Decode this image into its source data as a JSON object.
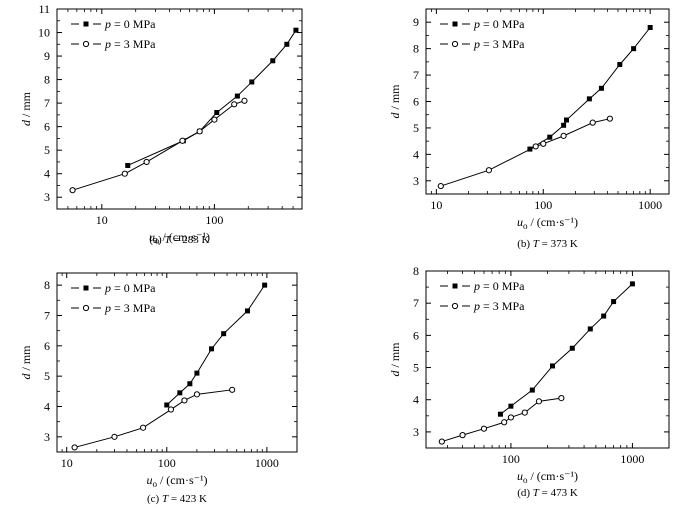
{
  "figure": {
    "legend_labels": [
      "p = 0  MPa",
      "p = 3  MPa"
    ],
    "xlabel": "u_o / (cm·s⁻¹)",
    "ylabel": "d / mm"
  },
  "chart_data": [
    {
      "type": "line",
      "caption": "(a) T = 283 K",
      "xscale": "log",
      "xlim": [
        4,
        600
      ],
      "ylim": [
        2.5,
        11
      ],
      "xticks": [
        10,
        100
      ],
      "xtick_labels": [
        "10",
        "100"
      ],
      "yticks": [
        3,
        4,
        5,
        6,
        7,
        8,
        9,
        10,
        11
      ],
      "ytick_labels": [
        "3",
        "4",
        "5",
        "6",
        "7",
        "8",
        "9",
        "10",
        "11"
      ],
      "xlabel": "u_o / (cm·s⁻¹)",
      "ylabel": "d / mm",
      "legend": "top-left",
      "series": [
        {
          "name": "p = 0  MPa",
          "marker": "filled-square",
          "x": [
            17,
            53,
            74,
            105,
            160,
            215,
            330,
            440,
            530
          ],
          "y": [
            4.35,
            5.4,
            5.8,
            6.6,
            7.3,
            7.9,
            8.8,
            9.5,
            10.1
          ]
        },
        {
          "name": "p = 3  MPa",
          "marker": "open-circle",
          "x": [
            5.5,
            16,
            25,
            52,
            74,
            100,
            150,
            185
          ],
          "y": [
            3.3,
            4.0,
            4.5,
            5.4,
            5.8,
            6.3,
            6.95,
            7.1
          ]
        }
      ]
    },
    {
      "type": "line",
      "caption": "(b) T = 373 K",
      "xscale": "log",
      "xlim": [
        8,
        1500
      ],
      "ylim": [
        2.5,
        9.5
      ],
      "xticks": [
        10,
        100,
        1000
      ],
      "xtick_labels": [
        "10",
        "100",
        "1000"
      ],
      "yticks": [
        3,
        4,
        5,
        6,
        7,
        8,
        9
      ],
      "ytick_labels": [
        "3",
        "4",
        "5",
        "6",
        "7",
        "8",
        "9"
      ],
      "xlabel": "u_o / (cm·s⁻¹)",
      "ylabel": "d / mm",
      "legend": "top-left",
      "series": [
        {
          "name": "p = 0  MPa",
          "marker": "filled-square",
          "x": [
            75,
            115,
            155,
            165,
            270,
            350,
            520,
            700,
            1000
          ],
          "y": [
            4.2,
            4.65,
            5.1,
            5.3,
            6.1,
            6.5,
            7.4,
            8.0,
            8.8
          ]
        },
        {
          "name": "p = 3  MPa",
          "marker": "open-circle",
          "x": [
            11,
            31,
            85,
            100,
            155,
            290,
            420
          ],
          "y": [
            2.8,
            3.4,
            4.3,
            4.4,
            4.7,
            5.2,
            5.35
          ]
        }
      ]
    },
    {
      "type": "line",
      "caption": "(c) T = 423 K",
      "xscale": "log",
      "xlim": [
        8,
        2000
      ],
      "ylim": [
        2.5,
        8.4
      ],
      "xticks": [
        10,
        100,
        1000
      ],
      "xtick_labels": [
        "10",
        "100",
        "1000"
      ],
      "yticks": [
        3,
        4,
        5,
        6,
        7,
        8
      ],
      "ytick_labels": [
        "3",
        "4",
        "5",
        "6",
        "7",
        "8"
      ],
      "xlabel": "u_o / (cm·s⁻¹)",
      "ylabel": "d / mm",
      "legend": "top-left",
      "series": [
        {
          "name": "p = 0  MPa",
          "marker": "filled-square",
          "x": [
            100,
            135,
            170,
            200,
            280,
            370,
            640,
            950
          ],
          "y": [
            4.05,
            4.45,
            4.75,
            5.1,
            5.9,
            6.4,
            7.15,
            8.0
          ]
        },
        {
          "name": "p = 3  MPa",
          "marker": "open-circle",
          "x": [
            12,
            30,
            58,
            110,
            150,
            200,
            450
          ],
          "y": [
            2.65,
            3.0,
            3.3,
            3.9,
            4.2,
            4.4,
            4.55
          ]
        }
      ]
    },
    {
      "type": "line",
      "caption": "(d) T = 473 K",
      "xscale": "log",
      "xlim": [
        20,
        2000
      ],
      "ylim": [
        2.5,
        8.0
      ],
      "xticks": [
        100,
        1000
      ],
      "xtick_labels": [
        "100",
        "1000"
      ],
      "yticks": [
        3,
        4,
        5,
        6,
        7,
        8
      ],
      "ytick_labels": [
        "3",
        "4",
        "5",
        "6",
        "7",
        "8"
      ],
      "xlabel": "u_o / (cm·s⁻¹)",
      "ylabel": "d / mm",
      "legend": "top-left",
      "series": [
        {
          "name": "p = 0  MPa",
          "marker": "filled-square",
          "x": [
            82,
            100,
            150,
            220,
            320,
            450,
            580,
            700,
            1000
          ],
          "y": [
            3.55,
            3.8,
            4.3,
            5.05,
            5.6,
            6.2,
            6.6,
            7.05,
            7.6
          ]
        },
        {
          "name": "p = 3  MPa",
          "marker": "open-circle",
          "x": [
            27,
            40,
            60,
            88,
            100,
            130,
            170,
            260
          ],
          "y": [
            2.7,
            2.9,
            3.1,
            3.3,
            3.45,
            3.6,
            3.95,
            4.05
          ]
        }
      ]
    }
  ]
}
